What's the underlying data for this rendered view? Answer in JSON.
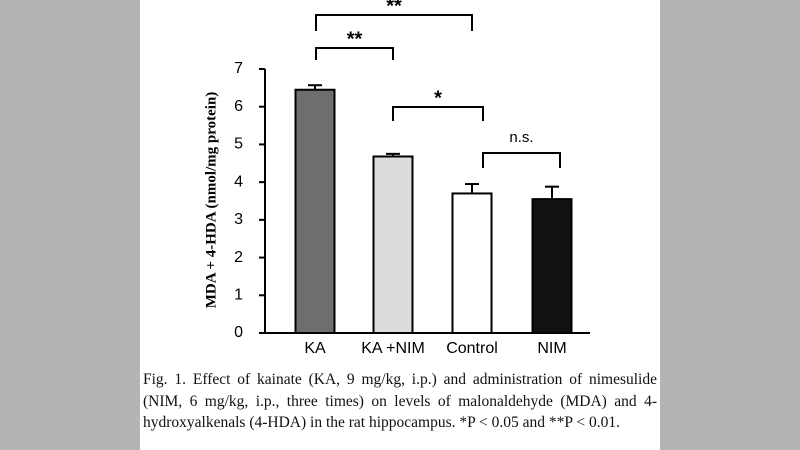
{
  "chart_data": {
    "type": "bar",
    "y_label": "MDA + 4-HDA (nmol/mg protein)",
    "categories": [
      "KA",
      "KA +NIM",
      "Control",
      "NIM"
    ],
    "values": [
      6.45,
      4.68,
      3.7,
      3.55
    ],
    "errors": [
      0.12,
      0.07,
      0.25,
      0.33
    ],
    "colors": [
      "#6e6e6e",
      "#dcdcdc",
      "#ffffff",
      "#111111"
    ],
    "ylim": [
      0,
      7
    ],
    "yticks": [
      0,
      1,
      2,
      3,
      4,
      5,
      6,
      7
    ],
    "annotations": [
      "**",
      "**",
      "*",
      "n.s."
    ],
    "caption": "Fig. 1. Effect of kainate (KA, 9 mg/kg, i.p.) and administration of nimesulide (NIM, 6 mg/kg, i.p., three times) on levels of malonaldehyde (MDA) and 4-hydroxyalkenals (4-HDA) in the rat hippocampus. *P < 0.05 and **P < 0.01."
  }
}
